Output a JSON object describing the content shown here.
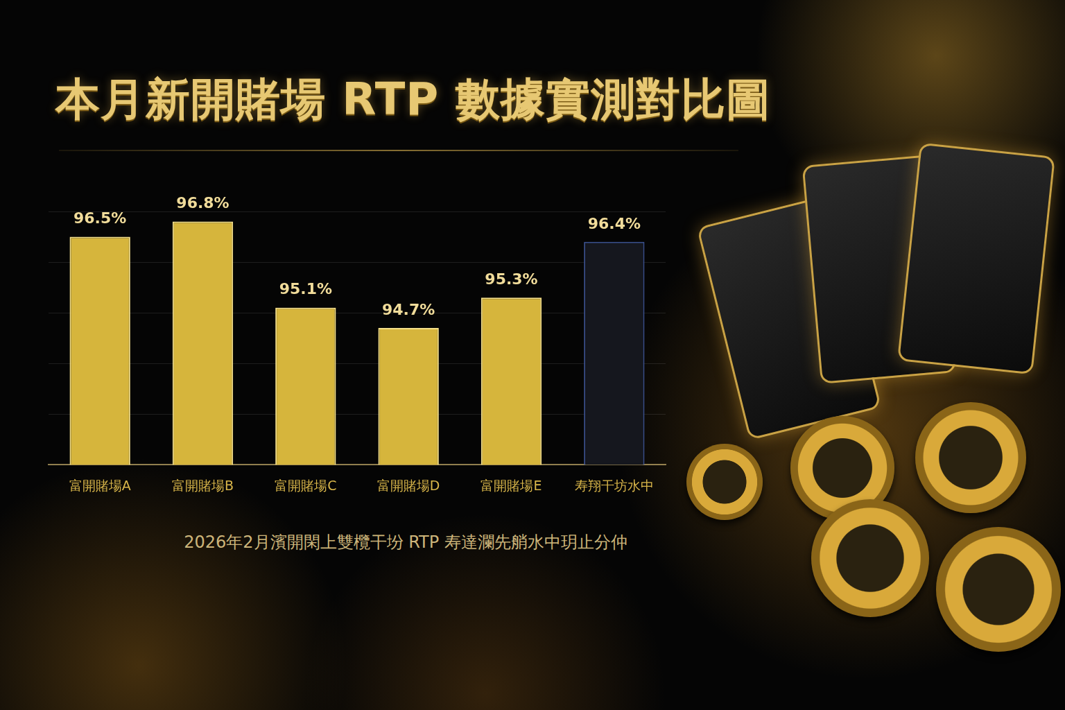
{
  "chart_data": {
    "type": "bar",
    "title": "本月新開賭場 RTP 數據實測對比圖",
    "subtitle": "2026年2月濱開閑上雙欖干坋 RTP 寿達瀾先艄水中玥止分仲",
    "categories": [
      "富開賭場A",
      "富開賭場B",
      "富開賭場C",
      "富開賭場D",
      "富開賭場E",
      "寿翔干坊水中"
    ],
    "values": [
      96.5,
      96.8,
      95.1,
      94.7,
      95.3,
      96.4
    ],
    "value_labels": [
      "96.5%",
      "96.8%",
      "95.1%",
      "94.7%",
      "95.3%",
      "96.4%"
    ],
    "colors": [
      "#d6b53c",
      "#d6b53c",
      "#d6b53c",
      "#d6b53c",
      "#d6b53c",
      "#15171e"
    ],
    "ylim": [
      92,
      97
    ],
    "yticks": [
      92,
      93,
      94,
      95,
      96,
      97
    ],
    "grid": true,
    "data_labels": true,
    "tick_labels": "x"
  }
}
